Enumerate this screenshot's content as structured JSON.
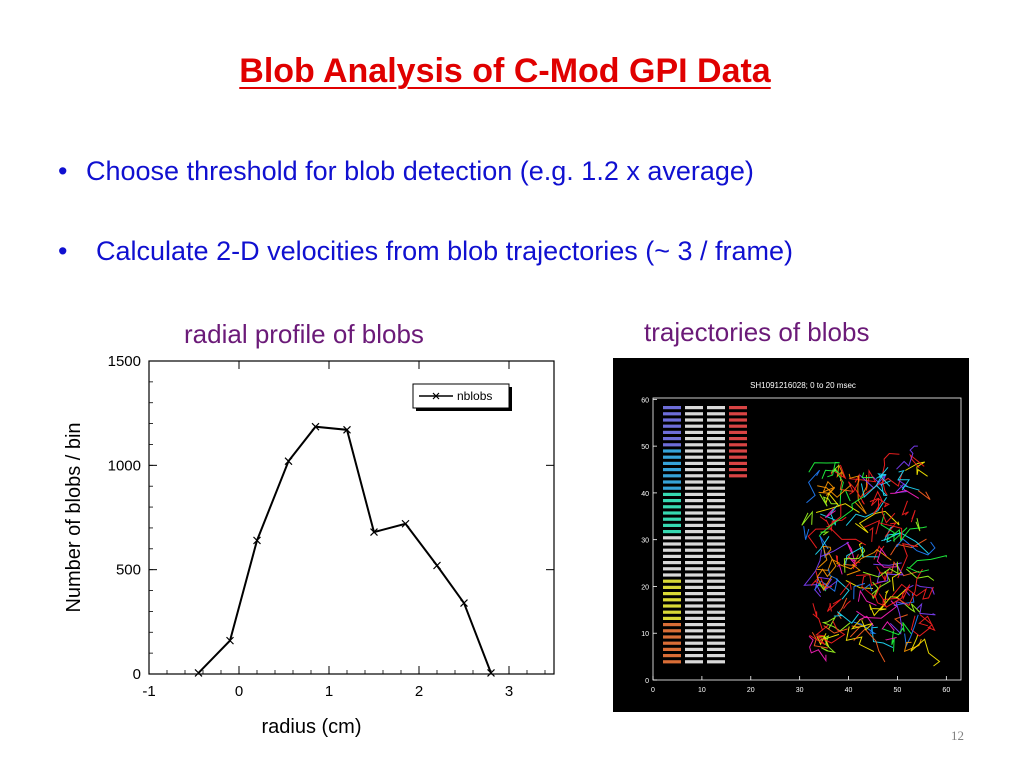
{
  "slide": {
    "title": "Blob Analysis of C-Mod GPI Data",
    "bullets": [
      "Choose threshold for blob detection (e.g. 1.2 x average)",
      "Calculate 2-D velocities from blob trajectories (~ 3 / frame)"
    ],
    "bullet_marker": "•",
    "page_number": "12",
    "colors": {
      "title": "#e00000",
      "bullets": "#1010d0",
      "captions": "#6b1a78"
    }
  },
  "left_figure": {
    "caption": "radial profile of blobs"
  },
  "right_figure": {
    "caption": "trajectories of blobs",
    "plot_title": "SH1091216028; 0 to 20 msec",
    "x_ticks": [
      "0",
      "10",
      "20",
      "30",
      "40",
      "50",
      "60"
    ],
    "y_ticks": [
      "0",
      "10",
      "20",
      "30",
      "40",
      "50",
      "60"
    ],
    "xlim": [
      0,
      63
    ],
    "ylim": [
      0,
      62
    ]
  },
  "chart_data": {
    "type": "line",
    "title": "",
    "xlabel": "radius (cm)",
    "ylabel": "Number of blobs / bin",
    "xlim": [
      -1,
      3.5
    ],
    "ylim": [
      0,
      1500
    ],
    "x_ticks": [
      "-1",
      "0",
      "1",
      "2",
      "3"
    ],
    "y_ticks": [
      "0",
      "500",
      "1000",
      "1500"
    ],
    "legend": {
      "entries": [
        "nblobs"
      ],
      "placement": "top-right"
    },
    "grid": false,
    "series": [
      {
        "name": "nblobs",
        "marker": "x",
        "x": [
          -0.45,
          -0.1,
          0.2,
          0.55,
          0.85,
          1.2,
          1.5,
          1.85,
          2.2,
          2.5,
          2.8
        ],
        "y": [
          5,
          160,
          640,
          1020,
          1185,
          1170,
          680,
          720,
          520,
          340,
          5
        ]
      }
    ]
  }
}
